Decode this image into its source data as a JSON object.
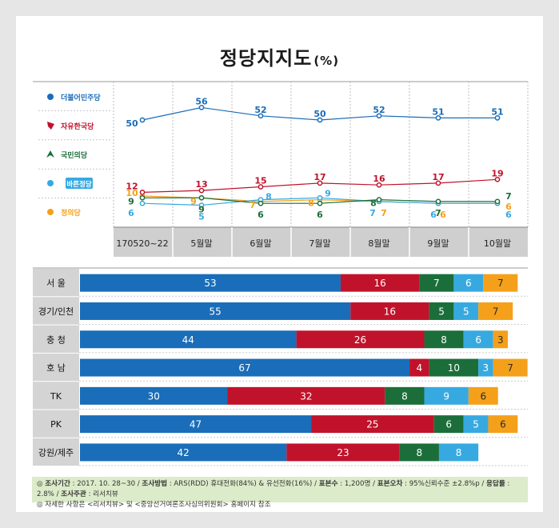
{
  "title": "정당지지도",
  "title_unit": "(%)",
  "colors": {
    "minjoo": "#1a6db8",
    "jayu": "#c0132b",
    "kukmin": "#1b6e3a",
    "bareun": "#37a9e1",
    "jeongui": "#f5a01a"
  },
  "chart_data": [
    {
      "type": "line",
      "categories": [
        "170520~22",
        "5월말",
        "6월말",
        "7월말",
        "8월말",
        "9월말",
        "10월말"
      ],
      "series": [
        {
          "name": "더불어민주당",
          "color_key": "minjoo",
          "icon": "circle-icon",
          "values": [
            50,
            56,
            52,
            50,
            52,
            51,
            51
          ]
        },
        {
          "name": "자유한국당",
          "color_key": "jayu",
          "icon": "torch-icon",
          "values": [
            12,
            13,
            15,
            17,
            16,
            17,
            19
          ]
        },
        {
          "name": "국민의당",
          "color_key": "kukmin",
          "icon": "person-icon",
          "values": [
            9,
            9,
            6,
            6,
            8,
            7,
            7
          ]
        },
        {
          "name": "바른정당",
          "color_key": "bareun",
          "icon": "square-icon",
          "values": [
            6,
            5,
            8,
            9,
            7,
            6,
            6
          ]
        },
        {
          "name": "정의당",
          "color_key": "jeongui",
          "icon": "check-icon",
          "values": [
            10,
            9,
            7,
            8,
            7,
            6,
            6
          ]
        }
      ]
    },
    {
      "type": "bar",
      "stacked": true,
      "categories": [
        "서 울",
        "경기/인천",
        "충 청",
        "호 남",
        "TK",
        "PK",
        "강원/제주"
      ],
      "series": [
        {
          "name": "더불어민주당",
          "color_key": "minjoo",
          "values": [
            53,
            55,
            44,
            67,
            30,
            47,
            42
          ]
        },
        {
          "name": "자유한국당",
          "color_key": "jayu",
          "values": [
            16,
            16,
            26,
            4,
            32,
            25,
            23
          ]
        },
        {
          "name": "국민의당",
          "color_key": "kukmin",
          "values": [
            7,
            5,
            8,
            10,
            8,
            6,
            8
          ]
        },
        {
          "name": "바른정당",
          "color_key": "bareun",
          "values": [
            6,
            5,
            6,
            3,
            9,
            5,
            8
          ]
        },
        {
          "name": "정의당",
          "color_key": "jeongui",
          "values": [
            7,
            7,
            3,
            7,
            6,
            6,
            null
          ]
        }
      ]
    }
  ],
  "footnote": {
    "b1": "조사기간",
    "t1": " : 2017. 10. 28~30 / ",
    "b2": "조사방법",
    "t2": " : ARS(RDD) 휴대전화(84%) & 유선전화(16%) / ",
    "b3": "표본수",
    "t3": " : 1,200명 / ",
    "b4": "표본오차",
    "t4": " : 95%신뢰수준 ±2.8%p / ",
    "b5": "응답률",
    "t5": " : 2.8% / ",
    "b6": "조사주관",
    "t6": " : 리서치뷰",
    "line2": "◎ 자세한 사항은 <리서치뷰> 및 <중앙선거여론조사심의위원회> 홈페이지 참조"
  }
}
